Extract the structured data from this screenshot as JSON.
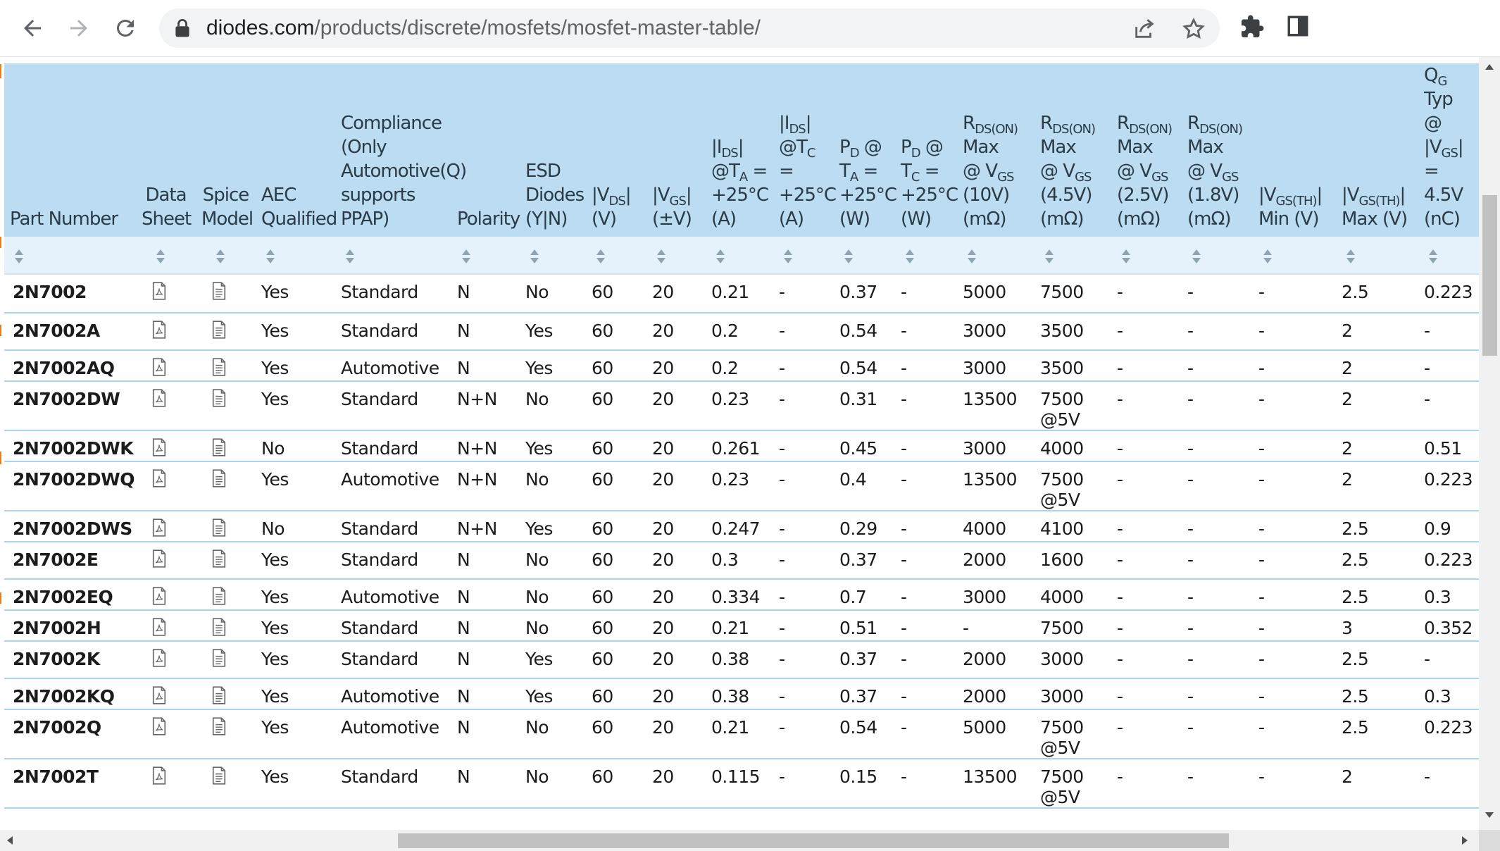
{
  "browser": {
    "url_host": "diodes.com",
    "url_path": "/products/discrete/mosfets/mosfet-master-table/"
  },
  "table": {
    "headers": {
      "part_number": "Part Number",
      "data_sheet_1": "Data",
      "data_sheet_2": "Sheet",
      "spice_1": "Spice",
      "spice_2": "Model",
      "aec_1": "AEC",
      "aec_2": "Qualified",
      "comp_1": "Compliance",
      "comp_2": "(Only",
      "comp_3": "Automotive(Q)",
      "comp_4": "supports",
      "comp_5": "PPAP)",
      "polarity": "Polarity",
      "esd_1": "ESD",
      "esd_2": "Diodes",
      "esd_3": "(Y|N)",
      "vds_1": "|V",
      "vds_sub": "DS",
      "vds_2": "|",
      "vds_unit": "(V)",
      "vgs_1": "|V",
      "vgs_sub": "GS",
      "vgs_2": "|",
      "vgs_unit": "(±V)",
      "ids_ta_1": "|I",
      "ids_ta_sub": "DS",
      "ids_ta_2": "|",
      "ids_ta_3": "@T",
      "ids_ta_sub2": "A",
      "ids_ta_4": " =",
      "ids_ta_5": "+25°C",
      "ids_ta_6": "(A)",
      "ids_tc_1": "|I",
      "ids_tc_sub": "DS",
      "ids_tc_2": "|",
      "ids_tc_3": "@T",
      "ids_tc_sub2": "C",
      "ids_tc_4": " =",
      "ids_tc_5": "+25°C",
      "ids_tc_6": "(A)",
      "pd_ta_1": "P",
      "pd_ta_sub": "D",
      "pd_ta_2": " @",
      "pd_ta_3": "T",
      "pd_ta_sub2": "A",
      "pd_ta_4": " =",
      "pd_ta_5": "+25°C",
      "pd_ta_6": "(W)",
      "pd_tc_1": "P",
      "pd_tc_sub": "D",
      "pd_tc_2": " @",
      "pd_tc_3": "T",
      "pd_tc_sub2": "C",
      "pd_tc_4": " =",
      "pd_tc_5": "+25°C",
      "pd_tc_6": "(W)",
      "r10_1": "R",
      "r10_sub": "DS(ON)",
      "r10_2": "Max",
      "r10_3": "@ V",
      "r10_sub2": "GS",
      "r10_4": "(10V)",
      "r10_5": "(mΩ)",
      "r45_1": "R",
      "r45_sub": "DS(ON)",
      "r45_2": "Max",
      "r45_3": "@ V",
      "r45_sub2": "GS",
      "r45_4": "(4.5V)",
      "r45_5": "(mΩ)",
      "r25_1": "R",
      "r25_sub": "DS(ON)",
      "r25_2": "Max",
      "r25_3": "@ V",
      "r25_sub2": "GS",
      "r25_4": "(2.5V)",
      "r25_5": "(mΩ)",
      "r18_1": "R",
      "r18_sub": "DS(ON)",
      "r18_2": "Max",
      "r18_3": "@ V",
      "r18_sub2": "GS",
      "r18_4": "(1.8V)",
      "r18_5": "(mΩ)",
      "vth_min_1": "|V",
      "vth_min_sub": "GS(TH)",
      "vth_min_2": "|",
      "vth_min_3": "Min (V)",
      "vth_max_1": "|V",
      "vth_max_sub": "GS(TH)",
      "vth_max_2": "|",
      "vth_max_3": "Max (V)",
      "qg_1": "Q",
      "qg_sub": "G",
      "qg_2": " Typ",
      "qg_3": "@",
      "qg_4": "|V",
      "qg_sub2": "GS",
      "qg_5": "|",
      "qg_6": "= 4.5V",
      "qg_7": "(nC)"
    },
    "rows": [
      {
        "pn": "2N7002",
        "aec": "Yes",
        "comp": "Standard",
        "pol": "N",
        "esd": "No",
        "vds": "60",
        "vgs": "20",
        "ids_ta": "0.21",
        "ids_tc": "-",
        "pd_ta": "0.37",
        "pd_tc": "-",
        "r10": "5000",
        "r45": "7500",
        "r45b": "",
        "r25": "-",
        "r18": "-",
        "vmin": "-",
        "vmax": "2.5",
        "qg": "0.223"
      },
      {
        "pn": "2N7002A",
        "aec": "Yes",
        "comp": "Standard",
        "pol": "N",
        "esd": "Yes",
        "vds": "60",
        "vgs": "20",
        "ids_ta": "0.2",
        "ids_tc": "-",
        "pd_ta": "0.54",
        "pd_tc": "-",
        "r10": "3000",
        "r45": "3500",
        "r45b": "",
        "r25": "-",
        "r18": "-",
        "vmin": "-",
        "vmax": "2",
        "qg": "-"
      },
      {
        "pn": "2N7002AQ",
        "aec": "Yes",
        "comp": "Automotive",
        "pol": "N",
        "esd": "Yes",
        "vds": "60",
        "vgs": "20",
        "ids_ta": "0.2",
        "ids_tc": "-",
        "pd_ta": "0.54",
        "pd_tc": "-",
        "r10": "3000",
        "r45": "3500",
        "r45b": "",
        "r25": "-",
        "r18": "-",
        "vmin": "-",
        "vmax": "2",
        "qg": "-"
      },
      {
        "pn": "2N7002DW",
        "aec": "Yes",
        "comp": "Standard",
        "pol": "N+N",
        "esd": "No",
        "vds": "60",
        "vgs": "20",
        "ids_ta": "0.23",
        "ids_tc": "-",
        "pd_ta": "0.31",
        "pd_tc": "-",
        "r10": "13500",
        "r45": "7500",
        "r45b": "@5V",
        "r25": "-",
        "r18": "-",
        "vmin": "-",
        "vmax": "2",
        "qg": "-"
      },
      {
        "pn": "2N7002DWK",
        "aec": "No",
        "comp": "Standard",
        "pol": "N+N",
        "esd": "Yes",
        "vds": "60",
        "vgs": "20",
        "ids_ta": "0.261",
        "ids_tc": "-",
        "pd_ta": "0.45",
        "pd_tc": "-",
        "r10": "3000",
        "r45": "4000",
        "r45b": "",
        "r25": "-",
        "r18": "-",
        "vmin": "-",
        "vmax": "2",
        "qg": "0.51"
      },
      {
        "pn": "2N7002DWQ",
        "aec": "Yes",
        "comp": "Automotive",
        "pol": "N+N",
        "esd": "No",
        "vds": "60",
        "vgs": "20",
        "ids_ta": "0.23",
        "ids_tc": "-",
        "pd_ta": "0.4",
        "pd_tc": "-",
        "r10": "13500",
        "r45": "7500",
        "r45b": "@5V",
        "r25": "-",
        "r18": "-",
        "vmin": "-",
        "vmax": "2",
        "qg": "0.223"
      },
      {
        "pn": "2N7002DWS",
        "aec": "No",
        "comp": "Standard",
        "pol": "N+N",
        "esd": "Yes",
        "vds": "60",
        "vgs": "20",
        "ids_ta": "0.247",
        "ids_tc": "-",
        "pd_ta": "0.29",
        "pd_tc": "-",
        "r10": "4000",
        "r45": "4100",
        "r45b": "",
        "r25": "-",
        "r18": "-",
        "vmin": "-",
        "vmax": "2.5",
        "qg": "0.9"
      },
      {
        "pn": "2N7002E",
        "aec": "Yes",
        "comp": "Standard",
        "pol": "N",
        "esd": "No",
        "vds": "60",
        "vgs": "20",
        "ids_ta": "0.3",
        "ids_tc": "-",
        "pd_ta": "0.37",
        "pd_tc": "-",
        "r10": "2000",
        "r45": "1600",
        "r45b": "",
        "r25": "-",
        "r18": "-",
        "vmin": "-",
        "vmax": "2.5",
        "qg": "0.223"
      },
      {
        "pn": "2N7002EQ",
        "aec": "Yes",
        "comp": "Automotive",
        "pol": "N",
        "esd": "No",
        "vds": "60",
        "vgs": "20",
        "ids_ta": "0.334",
        "ids_tc": "-",
        "pd_ta": "0.7",
        "pd_tc": "-",
        "r10": "3000",
        "r45": "4000",
        "r45b": "",
        "r25": "-",
        "r18": "-",
        "vmin": "-",
        "vmax": "2.5",
        "qg": "0.3"
      },
      {
        "pn": "2N7002H",
        "aec": "Yes",
        "comp": "Standard",
        "pol": "N",
        "esd": "No",
        "vds": "60",
        "vgs": "20",
        "ids_ta": "0.21",
        "ids_tc": "-",
        "pd_ta": "0.51",
        "pd_tc": "-",
        "r10": "-",
        "r45": "7500",
        "r45b": "",
        "r25": "-",
        "r18": "-",
        "vmin": "-",
        "vmax": "3",
        "qg": "0.352"
      },
      {
        "pn": "2N7002K",
        "aec": "Yes",
        "comp": "Standard",
        "pol": "N",
        "esd": "Yes",
        "vds": "60",
        "vgs": "20",
        "ids_ta": "0.38",
        "ids_tc": "-",
        "pd_ta": "0.37",
        "pd_tc": "-",
        "r10": "2000",
        "r45": "3000",
        "r45b": "",
        "r25": "-",
        "r18": "-",
        "vmin": "-",
        "vmax": "2.5",
        "qg": "-"
      },
      {
        "pn": "2N7002KQ",
        "aec": "Yes",
        "comp": "Automotive",
        "pol": "N",
        "esd": "Yes",
        "vds": "60",
        "vgs": "20",
        "ids_ta": "0.38",
        "ids_tc": "-",
        "pd_ta": "0.37",
        "pd_tc": "-",
        "r10": "2000",
        "r45": "3000",
        "r45b": "",
        "r25": "-",
        "r18": "-",
        "vmin": "-",
        "vmax": "2.5",
        "qg": "0.3"
      },
      {
        "pn": "2N7002Q",
        "aec": "Yes",
        "comp": "Automotive",
        "pol": "N",
        "esd": "No",
        "vds": "60",
        "vgs": "20",
        "ids_ta": "0.21",
        "ids_tc": "-",
        "pd_ta": "0.54",
        "pd_tc": "-",
        "r10": "5000",
        "r45": "7500",
        "r45b": "@5V",
        "r25": "-",
        "r18": "-",
        "vmin": "-",
        "vmax": "2.5",
        "qg": "0.223"
      },
      {
        "pn": "2N7002T",
        "aec": "Yes",
        "comp": "Standard",
        "pol": "N",
        "esd": "No",
        "vds": "60",
        "vgs": "20",
        "ids_ta": "0.115",
        "ids_tc": "-",
        "pd_ta": "0.15",
        "pd_tc": "-",
        "r10": "13500",
        "r45": "7500",
        "r45b": "@5V",
        "r25": "-",
        "r18": "-",
        "vmin": "-",
        "vmax": "2",
        "qg": "-"
      }
    ]
  }
}
